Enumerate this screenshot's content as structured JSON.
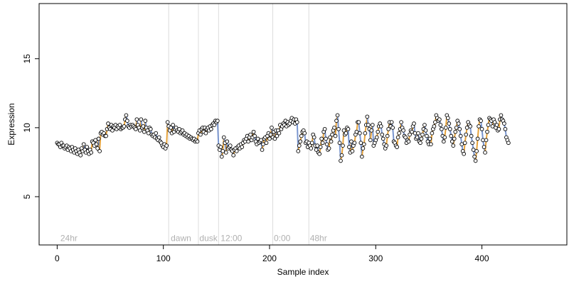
{
  "chart_data": {
    "type": "scatter",
    "xlabel": "Sample index",
    "ylabel": "Expression",
    "xlim": [
      -17,
      480
    ],
    "ylim": [
      1.5,
      19
    ],
    "x_ticks": [
      0,
      100,
      200,
      300,
      400
    ],
    "y_ticks": [
      5,
      10,
      15
    ],
    "x_tick_labels": [
      "0",
      "100",
      "200",
      "300",
      "400"
    ],
    "y_tick_labels": [
      "5",
      "10",
      "15"
    ],
    "vertical_lines": [
      105,
      133,
      152,
      203,
      237
    ],
    "annotations": [
      {
        "text": "24hr",
        "x": 3
      },
      {
        "text": "dawn",
        "x": 107
      },
      {
        "text": "dusk",
        "x": 134
      },
      {
        "text": "12:00",
        "x": 154
      },
      {
        "text": "0:00",
        "x": 204
      },
      {
        "text": "48hr",
        "x": 238
      }
    ],
    "annotation_y": 2.0,
    "colors": {
      "up_segment": "#e6a33c",
      "down_segment": "#7a96cf",
      "point_fill": "#ffffff",
      "vline": "#dcdcdc",
      "annotation": "#b0b0b0"
    },
    "x_start": 0,
    "y": [
      8.9,
      8.8,
      8.8,
      8.6,
      8.9,
      8.7,
      8.7,
      8.5,
      8.6,
      8.7,
      8.4,
      8.6,
      8.5,
      8.3,
      8.6,
      8.4,
      8.2,
      8.5,
      8.3,
      8.1,
      8.4,
      8.2,
      8.0,
      8.5,
      8.3,
      8.8,
      8.4,
      8.2,
      8.6,
      8.3,
      8.1,
      8.4,
      8.2,
      9.0,
      8.9,
      8.7,
      9.1,
      8.8,
      8.5,
      9.2,
      8.3,
      9.6,
      9.7,
      9.5,
      9.6,
      9.4,
      9.4,
      9.9,
      10.3,
      10.0,
      9.9,
      10.2,
      9.8,
      10.1,
      10.0,
      10.2,
      9.9,
      10.1,
      10.0,
      10.2,
      9.9,
      10.0,
      10.0,
      10.1,
      10.6,
      10.9,
      10.5,
      10.1,
      10.0,
      10.2,
      10.1,
      10.2,
      10.1,
      10.0,
      9.9,
      10.6,
      10.2,
      10.0,
      9.8,
      10.6,
      10.0,
      10.1,
      9.7,
      10.5,
      10.0,
      9.8,
      9.6,
      10.0,
      9.9,
      9.5,
      9.4,
      9.5,
      9.3,
      9.6,
      9.2,
      9.1,
      9.3,
      9.0,
      8.9,
      8.7,
      8.6,
      8.8,
      8.5,
      8.7,
      10.4,
      10.1,
      9.8,
      10.0,
      9.6,
      10.2,
      9.7,
      9.9,
      10.0,
      9.8,
      9.7,
      9.9,
      9.6,
      9.7,
      9.8,
      9.5,
      9.6,
      9.4,
      9.5,
      9.3,
      9.4,
      9.2,
      9.3,
      9.2,
      9.1,
      9.2,
      9.0,
      9.1,
      9.0,
      9.6,
      9.8,
      9.5,
      9.9,
      10.0,
      9.7,
      10.0,
      9.6,
      9.9,
      10.0,
      9.8,
      10.1,
      9.9,
      10.2,
      10.3,
      10.2,
      10.5,
      10.4,
      10.5,
      8.7,
      8.4,
      8.6,
      7.9,
      8.3,
      9.3,
      8.9,
      8.2,
      9.0,
      8.5,
      8.6,
      8.7,
      8.4,
      8.3,
      8.0,
      8.4,
      8.5,
      8.3,
      8.6,
      8.7,
      8.5,
      8.8,
      8.6,
      8.9,
      9.1,
      9.0,
      9.2,
      9.4,
      9.0,
      9.3,
      9.5,
      9.1,
      9.3,
      9.7,
      9.4,
      9.0,
      8.8,
      9.2,
      8.9,
      9.0,
      9.1,
      8.4,
      8.8,
      9.2,
      9.3,
      8.9,
      9.4,
      9.6,
      9.2,
      9.5,
      10.0,
      9.3,
      9.7,
      9.2,
      9.8,
      9.4,
      9.8,
      9.6,
      10.2,
      9.9,
      10.1,
      10.3,
      10.2,
      10.5,
      10.1,
      10.4,
      10.2,
      10.3,
      10.5,
      10.7,
      10.4,
      10.6,
      10.3,
      10.6,
      10.4,
      8.3,
      8.7,
      9.0,
      9.4,
      9.7,
      9.8,
      9.6,
      8.9,
      9.0,
      8.6,
      8.9,
      8.7,
      8.5,
      8.9,
      9.5,
      9.3,
      8.7,
      8.4,
      8.7,
      8.2,
      8.1,
      8.6,
      9.2,
      8.9,
      9.7,
      9.9,
      9.2,
      8.8,
      8.4,
      8.5,
      9.3,
      9.0,
      9.5,
      9.8,
      10.0,
      9.4,
      10.5,
      10.9,
      9.9,
      8.9,
      7.6,
      8.0,
      8.7,
      9.8,
      9.5,
      9.6,
      10.0,
      9.9,
      8.6,
      8.2,
      9.0,
      8.3,
      8.7,
      8.9,
      9.5,
      9.7,
      10.4,
      10.4,
      9.6,
      8.9,
      7.9,
      8.5,
      8.8,
      9.6,
      10.2,
      10.8,
      10.2,
      9.9,
      9.1,
      9.8,
      10.2,
      8.7,
      8.9,
      9.1,
      9.3,
      9.7,
      10.1,
      10.3,
      10.1,
      9.5,
      9.2,
      8.8,
      8.5,
      8.7,
      9.4,
      9.9,
      10.4,
      10.1,
      10.4,
      10.0,
      9.0,
      8.9,
      8.7,
      8.6,
      9.3,
      9.6,
      9.9,
      10.4,
      10.0,
      9.8,
      9.4,
      9.3,
      8.9,
      9.1,
      9.0,
      9.5,
      9.8,
      9.7,
      10.1,
      10.3,
      9.6,
      9.2,
      9.3,
      9.6,
      9.0,
      8.9,
      9.2,
      9.5,
      9.9,
      10.2,
      9.8,
      9.4,
      9.0,
      8.8,
      9.2,
      8.8,
      9.6,
      9.9,
      10.1,
      10.4,
      10.9,
      10.7,
      10.5,
      10.6,
      10.2,
      9.9,
      9.4,
      9.0,
      9.3,
      10.0,
      10.9,
      10.7,
      10.3,
      9.9,
      9.4,
      9.0,
      8.7,
      9.2,
      9.7,
      10.0,
      10.5,
      10.3,
      9.9,
      9.4,
      8.8,
      8.3,
      8.1,
      8.9,
      9.5,
      10.0,
      10.4,
      10.2,
      10.1,
      9.4,
      8.9,
      8.4,
      7.9,
      7.6,
      8.3,
      9.2,
      10.1,
      10.6,
      10.5,
      9.9,
      9.1,
      8.6,
      8.2,
      9.1,
      9.7,
      10.2,
      10.7,
      10.6,
      10.5,
      10.1,
      10.6,
      10.4,
      10.0,
      10.2,
      9.8,
      9.9,
      10.6,
      10.9,
      10.6,
      10.5,
      10.3,
      9.9,
      9.3,
      9.1,
      8.9
    ]
  }
}
